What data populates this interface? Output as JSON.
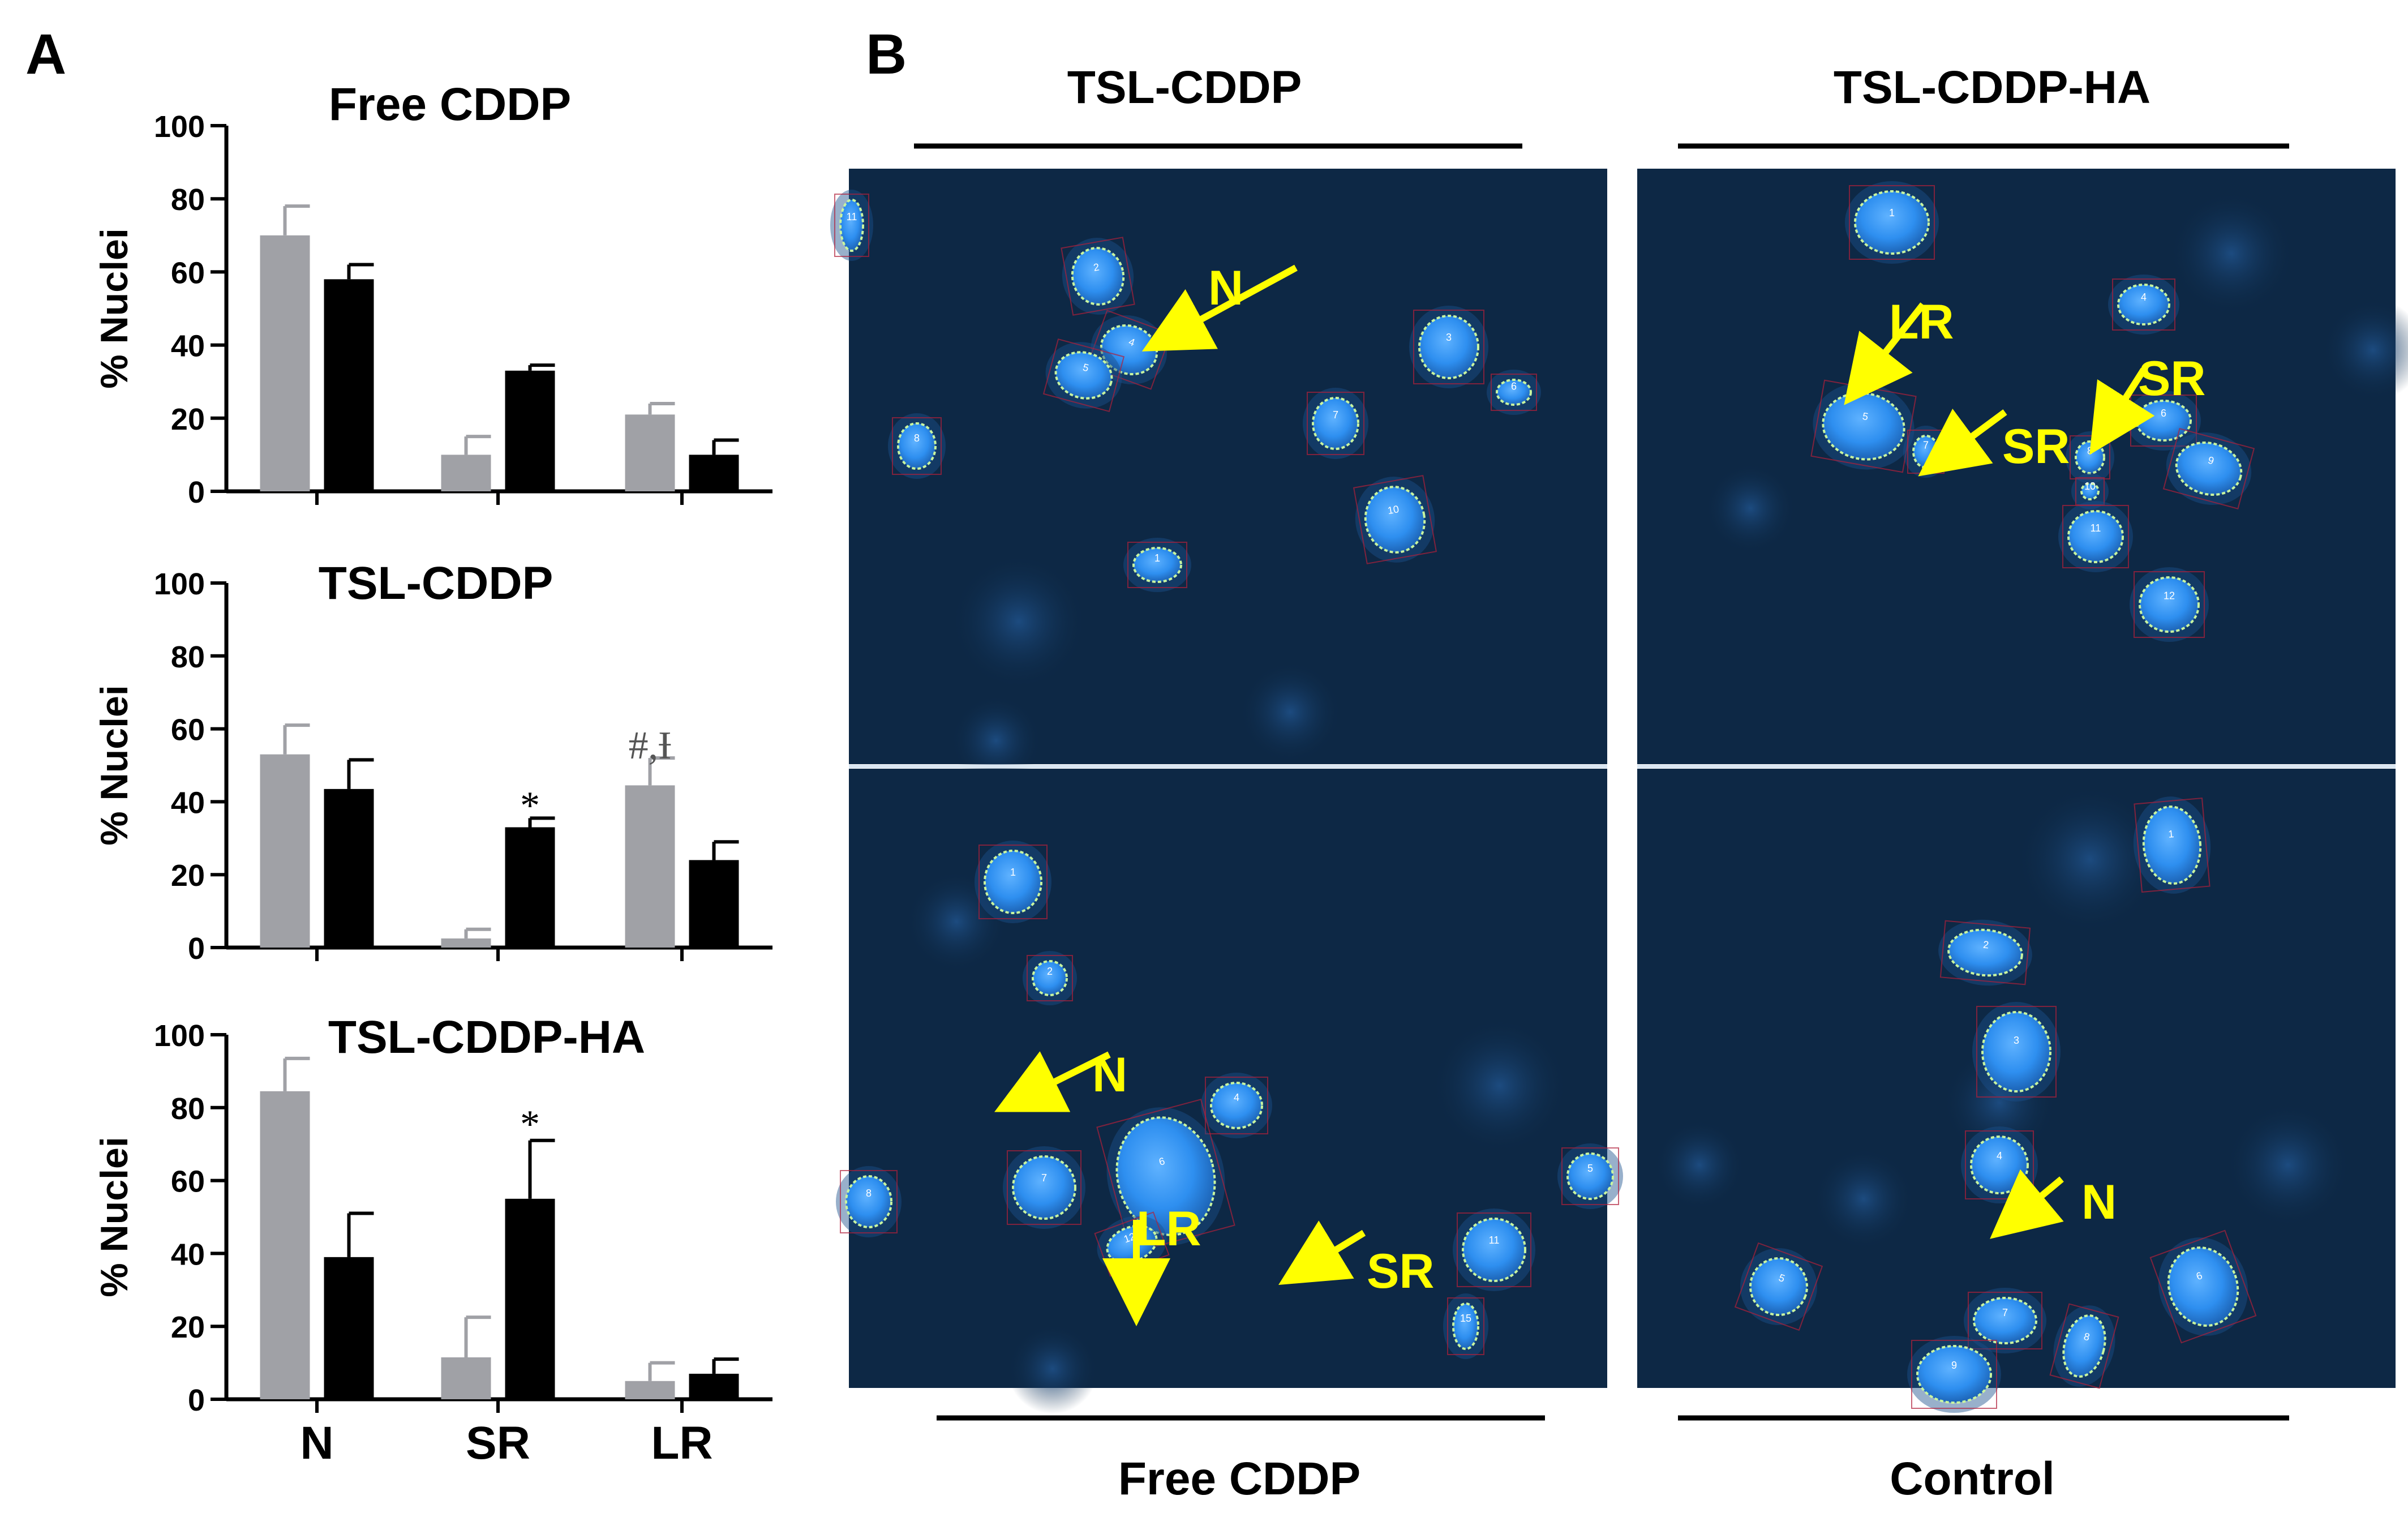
{
  "figure": {
    "panel_a_label": "A",
    "panel_b_label": "B"
  },
  "colors": {
    "gray_bar": "#a0a1a6",
    "black_bar": "#000000",
    "micro_bg": "#0d2845",
    "nucleus": "#2e8ff0",
    "arrow": "#ffff00"
  },
  "chart_data": [
    {
      "type": "bar",
      "title": "Free CDDP",
      "ylabel": "% Nuclei",
      "xlabel": "",
      "ylim": [
        0,
        100
      ],
      "yticks": [
        0,
        20,
        40,
        60,
        80,
        100
      ],
      "categories": [
        "N",
        "SR",
        "LR"
      ],
      "show_category_labels": false,
      "series": [
        {
          "values": [
            70,
            10,
            21
          ],
          "errors": [
            8,
            5,
            3
          ],
          "color": "#a0a1a6"
        },
        {
          "values": [
            58,
            33,
            10
          ],
          "errors": [
            4,
            1.5,
            4
          ],
          "color": "#000000"
        }
      ],
      "annotations": []
    },
    {
      "type": "bar",
      "title": "TSL-CDDP",
      "ylabel": "% Nuclei",
      "xlabel": "",
      "ylim": [
        0,
        100
      ],
      "yticks": [
        0,
        20,
        40,
        60,
        80,
        100
      ],
      "categories": [
        "N",
        "SR",
        "LR"
      ],
      "show_category_labels": false,
      "series": [
        {
          "values": [
            53,
            2.5,
            44.5
          ],
          "errors": [
            8,
            2.5,
            7.5
          ],
          "color": "#a0a1a6"
        },
        {
          "values": [
            43.5,
            33,
            24
          ],
          "errors": [
            8,
            2.5,
            5
          ],
          "color": "#000000"
        }
      ],
      "annotations": [
        {
          "text": "*",
          "category": 1,
          "series": 1,
          "value": 38.5
        },
        {
          "text": "#,Ɨ",
          "category": 2,
          "series": 0,
          "value": 55
        }
      ]
    },
    {
      "type": "bar",
      "title": "TSL-CDDP-HA",
      "ylabel": "% Nuclei",
      "xlabel": "",
      "ylim": [
        0,
        100
      ],
      "yticks": [
        0,
        20,
        40,
        60,
        80,
        100
      ],
      "categories": [
        "N",
        "SR",
        "LR"
      ],
      "show_category_labels": true,
      "series": [
        {
          "values": [
            84.5,
            11.5,
            5
          ],
          "errors": [
            9,
            11,
            5
          ],
          "color": "#a0a1a6"
        },
        {
          "values": [
            39,
            55,
            7
          ],
          "errors": [
            12,
            16,
            4
          ],
          "color": "#000000"
        }
      ],
      "annotations": [
        {
          "text": "*",
          "category": 1,
          "series": 1,
          "value": 75
        }
      ]
    }
  ],
  "micrographs": {
    "top_labels": [
      "TSL-CDDP",
      "TSL-CDDP-HA"
    ],
    "bottom_labels": [
      "Free CDDP",
      "Control"
    ],
    "panels": [
      {
        "name": "TSL-CDDP",
        "cells": [
          {
            "id": "2"
          },
          {
            "id": "4"
          },
          {
            "id": "5"
          },
          {
            "id": "3"
          },
          {
            "id": "6"
          },
          {
            "id": "7"
          },
          {
            "id": "8"
          },
          {
            "id": "10"
          },
          {
            "id": "1"
          },
          {
            "id": "11"
          }
        ],
        "arrows": [
          {
            "label": "N"
          }
        ]
      },
      {
        "name": "TSL-CDDP-HA",
        "cells": [
          {
            "id": "1"
          },
          {
            "id": "4"
          },
          {
            "id": "5"
          },
          {
            "id": "7"
          },
          {
            "id": "6"
          },
          {
            "id": "8"
          },
          {
            "id": "9"
          },
          {
            "id": "10"
          },
          {
            "id": "11"
          },
          {
            "id": "12"
          }
        ],
        "arrows": [
          {
            "label": "LR"
          },
          {
            "label": "SR"
          },
          {
            "label": "SR"
          }
        ]
      },
      {
        "name": "Free CDDP",
        "cells": [
          {
            "id": "1"
          },
          {
            "id": "2"
          },
          {
            "id": "4"
          },
          {
            "id": "6"
          },
          {
            "id": "12"
          },
          {
            "id": "7"
          },
          {
            "id": "8"
          },
          {
            "id": "5"
          },
          {
            "id": "11"
          },
          {
            "id": "15"
          }
        ],
        "arrows": [
          {
            "label": "N"
          },
          {
            "label": "LR"
          },
          {
            "label": "SR"
          }
        ]
      },
      {
        "name": "Control",
        "cells": [
          {
            "id": "1"
          },
          {
            "id": "2"
          },
          {
            "id": "3"
          },
          {
            "id": "4"
          },
          {
            "id": "5"
          },
          {
            "id": "6"
          },
          {
            "id": "7"
          },
          {
            "id": "8"
          },
          {
            "id": "9"
          }
        ],
        "arrows": [
          {
            "label": "N"
          }
        ]
      }
    ]
  }
}
